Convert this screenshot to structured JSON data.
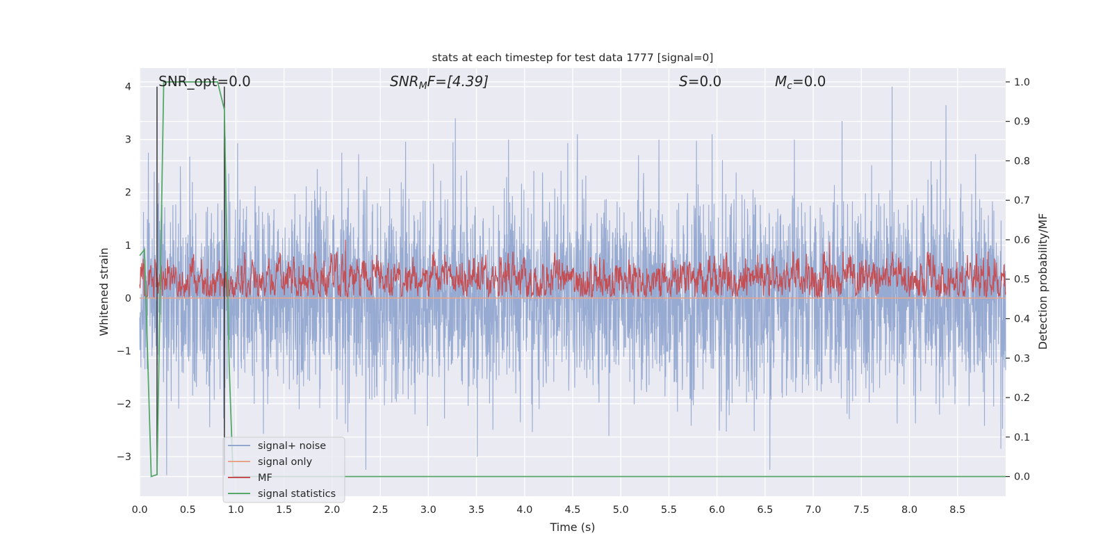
{
  "chart_data": {
    "type": "line",
    "title": "stats at each timestep for test data 1777 [signal=0]",
    "xlabel": "Time (s)",
    "ylabel_left": "Whitened strain",
    "ylabel_right": "Detection probability/MF",
    "xlim": [
      0.0,
      9.0
    ],
    "ylim_left": [
      -3.75,
      4.35
    ],
    "ylim_right": [
      -0.05,
      1.035
    ],
    "x_ticks": [
      "0.0",
      "0.5",
      "1.0",
      "1.5",
      "2.0",
      "2.5",
      "3.0",
      "3.5",
      "4.0",
      "4.5",
      "5.0",
      "5.5",
      "6.0",
      "6.5",
      "7.0",
      "7.5",
      "8.0",
      "8.5"
    ],
    "x_tick_values": [
      0.0,
      0.5,
      1.0,
      1.5,
      2.0,
      2.5,
      3.0,
      3.5,
      4.0,
      4.5,
      5.0,
      5.5,
      6.0,
      6.5,
      7.0,
      7.5,
      8.0,
      8.5
    ],
    "y_ticks_left": [
      "−3",
      "−2",
      "−1",
      "0",
      "1",
      "2",
      "3",
      "4"
    ],
    "y_tick_values_left": [
      -3,
      -2,
      -1,
      0,
      1,
      2,
      3,
      4
    ],
    "y_ticks_right": [
      "0.0",
      "0.1",
      "0.2",
      "0.3",
      "0.4",
      "0.5",
      "0.6",
      "0.7",
      "0.8",
      "0.9",
      "1.0"
    ],
    "y_tick_values_right": [
      0.0,
      0.1,
      0.2,
      0.3,
      0.4,
      0.5,
      0.6,
      0.7,
      0.8,
      0.9,
      1.0
    ],
    "grid": true,
    "legend_position": "lower-left",
    "annotations": {
      "snr_opt": "SNR_opt=0.0",
      "snr_mf_main": "SNR",
      "snr_mf_sub": "M",
      "snr_mf_rest": "F=[4.39]",
      "s_main": "S",
      "s_rest": "=0.0",
      "mc_main": "M",
      "mc_sub": "c",
      "mc_rest": "=0.0"
    },
    "series": [
      {
        "name": "signal+ noise",
        "axis": "left",
        "color": "#92a7d0",
        "description_values": {
          "typical_range": [
            -1.6,
            1.6
          ],
          "extremes": [
            -3.35,
            4.0
          ]
        },
        "peaks": [
          [
            0.09,
            2.75
          ],
          [
            0.28,
            -3.35
          ],
          [
            0.89,
            3.05
          ],
          [
            2.1,
            2.75
          ],
          [
            2.35,
            -3.25
          ],
          [
            3.28,
            3.4
          ],
          [
            4.55,
            3.1
          ],
          [
            5.95,
            3.1
          ],
          [
            6.55,
            -3.25
          ],
          [
            7.3,
            3.35
          ],
          [
            7.82,
            4.0
          ],
          [
            8.38,
            3.65
          ],
          [
            8.95,
            -2.85
          ]
        ]
      },
      {
        "name": "signal only",
        "axis": "left",
        "color": "#e8a48a",
        "x": [
          0.0,
          9.0
        ],
        "values": [
          0.0,
          0.0
        ]
      },
      {
        "name": "MF",
        "axis": "right",
        "color": "#c44e52",
        "description_values": {
          "baseline": 0.5,
          "typical_range": [
            0.455,
            0.56
          ],
          "max": 0.6
        }
      },
      {
        "name": "signal statistics",
        "axis": "right",
        "color": "#55a868",
        "x": [
          0.0,
          0.05,
          0.12,
          0.18,
          0.25,
          0.81,
          0.88,
          0.93,
          0.97,
          9.0
        ],
        "values": [
          0.56,
          0.575,
          0.0,
          0.005,
          1.0,
          1.0,
          0.93,
          0.28,
          0.0,
          0.0
        ]
      }
    ],
    "vertical_markers": [
      {
        "x": 0.18,
        "color": "#333333",
        "ymin": -3.35,
        "ymax": 4.0
      },
      {
        "x": 0.88,
        "color": "#333333",
        "ymin": -3.35,
        "ymax": 4.0
      }
    ]
  }
}
